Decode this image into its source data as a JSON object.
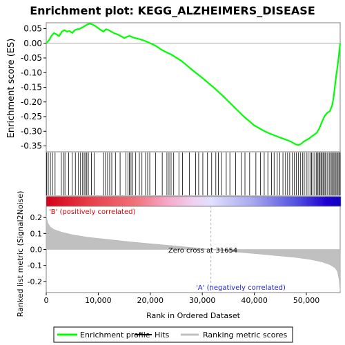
{
  "chart_data": {
    "type": "line",
    "title": "Enrichment plot: KEGG_ALZHEIMERS_DISEASE",
    "enrichment_panel": {
      "ylabel": "Enrichment score (ES)",
      "ylim": [
        -0.37,
        0.07
      ],
      "yticks": [
        0.05,
        0.0,
        -0.05,
        -0.1,
        -0.15,
        -0.2,
        -0.25,
        -0.3,
        -0.35
      ],
      "ytick_labels": [
        "0.05",
        "0.00",
        "-0.05",
        "-0.10",
        "-0.15",
        "-0.20",
        "-0.25",
        "-0.30",
        "-0.35"
      ],
      "series": [
        {
          "name": "Enrichment profile",
          "color": "#00ff00",
          "x": [
            0,
            500,
            1000,
            1500,
            2000,
            2500,
            3000,
            3500,
            4000,
            4500,
            5000,
            5500,
            6000,
            6500,
            7000,
            7500,
            8000,
            8500,
            9000,
            9500,
            10000,
            10500,
            11000,
            11500,
            12000,
            13000,
            14000,
            15000,
            15500,
            16000,
            17000,
            18000,
            19000,
            20000,
            21000,
            22000,
            23000,
            24000,
            26000,
            28000,
            30000,
            32000,
            34000,
            36000,
            38000,
            40000,
            41000,
            42000,
            43000,
            44000,
            45000,
            46000,
            47000,
            47500,
            48000,
            48500,
            49000,
            49500,
            50000,
            50500,
            51000,
            51500,
            52000,
            52500,
            53000,
            53500,
            54000,
            54500,
            55000,
            55300,
            55600,
            55900,
            56200,
            56500
          ],
          "y": [
            0.0,
            0.01,
            0.025,
            0.035,
            0.03,
            0.025,
            0.04,
            0.045,
            0.04,
            0.042,
            0.035,
            0.045,
            0.048,
            0.05,
            0.055,
            0.06,
            0.065,
            0.067,
            0.063,
            0.058,
            0.052,
            0.045,
            0.04,
            0.048,
            0.045,
            0.035,
            0.028,
            0.018,
            0.022,
            0.025,
            0.018,
            0.014,
            0.008,
            0.0,
            -0.008,
            -0.02,
            -0.03,
            -0.038,
            -0.06,
            -0.09,
            -0.118,
            -0.148,
            -0.18,
            -0.215,
            -0.25,
            -0.28,
            -0.29,
            -0.3,
            -0.308,
            -0.315,
            -0.322,
            -0.328,
            -0.335,
            -0.34,
            -0.345,
            -0.347,
            -0.343,
            -0.335,
            -0.33,
            -0.325,
            -0.318,
            -0.312,
            -0.305,
            -0.29,
            -0.268,
            -0.248,
            -0.237,
            -0.232,
            -0.21,
            -0.175,
            -0.13,
            -0.09,
            -0.05,
            0.0
          ]
        }
      ]
    },
    "hits_panel": {
      "legend_name": "Hits",
      "hit_positions": [
        100,
        400,
        800,
        1200,
        1700,
        2900,
        3300,
        3600,
        4300,
        5000,
        5600,
        6200,
        6600,
        7000,
        7300,
        7600,
        7800,
        8100,
        8700,
        9200,
        11000,
        11400,
        11800,
        12200,
        12600,
        13300,
        14200,
        15300,
        15700,
        16000,
        16300,
        16600,
        17200,
        17900,
        18400,
        19100,
        19500,
        19900,
        21000,
        22300,
        23200,
        23600,
        24000,
        24500,
        25500,
        26200,
        27500,
        28700,
        29300,
        30100,
        31000,
        31800,
        32600,
        33100,
        33700,
        34600,
        35300,
        36400,
        37500,
        38200,
        39100,
        40300,
        41200,
        41900,
        42600,
        43300,
        43800,
        44400,
        44900,
        45500,
        46000,
        46400,
        46800,
        47300,
        47700,
        48100,
        48500,
        48900,
        49300,
        49600,
        50000,
        50300,
        50700,
        51000,
        51300,
        51600,
        51900,
        52200,
        52400,
        52600,
        52800,
        53000,
        53200,
        53400,
        53600,
        53800,
        54100,
        54400,
        54700,
        54900,
        55100,
        55300,
        55500,
        55700,
        55900,
        56100,
        56300,
        56500
      ]
    },
    "ranked_list_panel": {
      "ylabel": "Ranked list metric (Signal2Noise)",
      "xlabel": "Rank in Ordered Dataset",
      "legend_name": "Ranking metric scores",
      "ylim": [
        -0.27,
        0.27
      ],
      "yticks": [
        0.2,
        0.1,
        0.0,
        -0.1,
        -0.2
      ],
      "ytick_labels": [
        "0.2",
        "0.1",
        "0.0",
        "-0.1",
        "-0.2"
      ],
      "x": [
        0,
        300,
        800,
        1500,
        3000,
        5000,
        8000,
        12000,
        16000,
        20000,
        24000,
        28000,
        31654,
        35000,
        40000,
        44000,
        48000,
        51000,
        53000,
        54500,
        55500,
        56000,
        56300,
        56500
      ],
      "y": [
        0.21,
        0.165,
        0.14,
        0.125,
        0.108,
        0.092,
        0.076,
        0.062,
        0.048,
        0.036,
        0.024,
        0.012,
        0.0,
        -0.012,
        -0.026,
        -0.038,
        -0.05,
        -0.064,
        -0.078,
        -0.095,
        -0.115,
        -0.14,
        -0.19,
        -0.26
      ]
    },
    "xlim": [
      0,
      56500
    ],
    "xticks": [
      0,
      10000,
      20000,
      30000,
      40000,
      50000
    ],
    "xtick_labels": [
      "0",
      "10,000",
      "20,000",
      "30,000",
      "40,000",
      "50,000"
    ],
    "annotations": {
      "positive_label": "'B' (positively correlated)",
      "negative_label": "'A' (negatively correlated)",
      "zero_cross_label": "Zero cross at 31654",
      "zero_cross_x": 31654
    },
    "legend_items": [
      "Enrichment profile",
      "Hits",
      "Ranking metric scores"
    ],
    "colors": {
      "profile": "#00ff00",
      "hits": "#000000",
      "metric_fill": "#c0c0c0",
      "positive": "#e8001a",
      "negative": "#1a00d8",
      "frame": "#808080"
    }
  }
}
